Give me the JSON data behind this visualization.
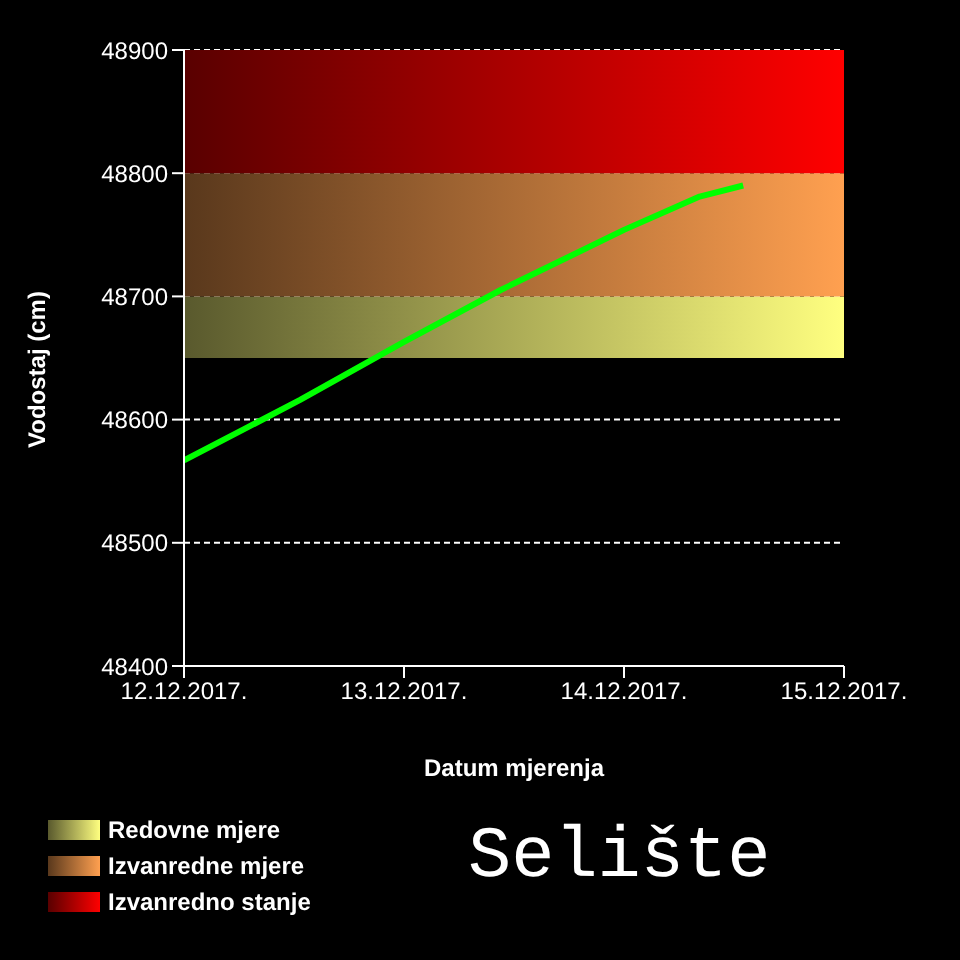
{
  "chart_data": {
    "type": "line",
    "xlabel": "Datum mjerenja",
    "ylabel": "Vodostaj (cm)",
    "x": [
      "2017-12-12T00:00",
      "2017-12-12T06:30",
      "2017-12-12T12:40",
      "2017-12-13T00:00",
      "2017-12-13T10:30",
      "2017-12-14T00:00",
      "2017-12-14T08:15",
      "2017-12-14T13:00"
    ],
    "series": [
      {
        "color": "#00ff00",
        "values": [
          48567,
          48592,
          48616,
          48663,
          48705,
          48754,
          48781,
          48790
        ]
      }
    ],
    "xlim": [
      "2017-12-12",
      "2017-12-15"
    ],
    "xticks": [
      {
        "value": "2017-12-12",
        "label": "12.12.2017."
      },
      {
        "value": "2017-12-13",
        "label": "13.12.2017."
      },
      {
        "value": "2017-12-14",
        "label": "14.12.2017."
      },
      {
        "value": "2017-12-15",
        "label": "15.12.2017."
      }
    ],
    "ylim": [
      48400,
      48900
    ],
    "yticks": [
      48400,
      48500,
      48600,
      48700,
      48800,
      48900
    ],
    "bands": [
      {
        "axis": "y",
        "from": 48650,
        "to": 48700,
        "label": "Redovne mjere",
        "color": "#ffff80"
      },
      {
        "axis": "y",
        "from": 48700,
        "to": 48800,
        "label": "Izvanredne mjere",
        "color": "#ffa050"
      },
      {
        "axis": "y",
        "from": 48800,
        "to": 48900,
        "label": "Izvanredno stanje",
        "color": "#ff0000"
      }
    ],
    "grid": "y",
    "legend": "bottom left",
    "marker": "none",
    "line_style": "solid",
    "annotations": [
      "Selište"
    ]
  }
}
